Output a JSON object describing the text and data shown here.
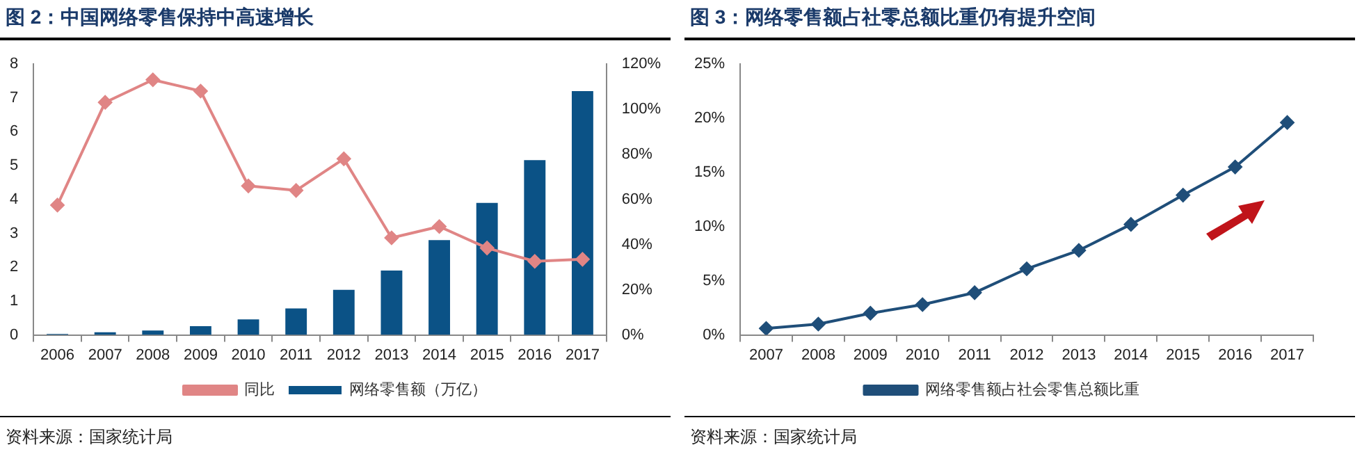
{
  "chart_data": [
    {
      "type": "bar",
      "title": "图 2：中国网络零售保持中高速增长",
      "categories": [
        "2006",
        "2007",
        "2008",
        "2009",
        "2010",
        "2011",
        "2012",
        "2013",
        "2014",
        "2015",
        "2016",
        "2017"
      ],
      "series": [
        {
          "name": "网络零售额（万亿）",
          "type": "bar",
          "color": "#0b5286",
          "values": [
            0.03,
            0.08,
            0.13,
            0.26,
            0.46,
            0.78,
            1.33,
            1.9,
            2.8,
            3.9,
            5.16,
            7.2
          ]
        },
        {
          "name": "同比",
          "type": "line",
          "axis": "y2",
          "color": "#e08585",
          "marker": "diamond",
          "values": [
            57.5,
            103,
            113,
            108,
            66,
            64,
            78,
            43,
            48,
            38.5,
            32.6,
            33.5
          ]
        }
      ],
      "ylim": [
        0,
        8
      ],
      "yticks": [
        0,
        1,
        2,
        3,
        4,
        5,
        6,
        7,
        8
      ],
      "y2lim": [
        0,
        120
      ],
      "y2ticks": [
        {
          "value": 0,
          "label": "0%"
        },
        {
          "value": 20,
          "label": "20%"
        },
        {
          "value": 40,
          "label": "40%"
        },
        {
          "value": 60,
          "label": "60%"
        },
        {
          "value": 80,
          "label": "80%"
        },
        {
          "value": 100,
          "label": "100%"
        },
        {
          "value": 120,
          "label": "120%"
        }
      ],
      "grid": false,
      "legend": "bottom",
      "annotations": [
        "资料来源：国家统计局"
      ]
    },
    {
      "type": "line",
      "title": "图 3：网络零售额占社零总额比重仍有提升空间",
      "categories": [
        "2007",
        "2008",
        "2009",
        "2010",
        "2011",
        "2012",
        "2013",
        "2014",
        "2015",
        "2016",
        "2017"
      ],
      "series": [
        {
          "name": "网络零售额占社会零售总额比重",
          "color": "#1f4e79",
          "values": [
            0.6,
            1.0,
            2.0,
            2.8,
            3.9,
            6.1,
            7.8,
            10.2,
            12.9,
            15.5,
            19.6
          ]
        }
      ],
      "marker": "diamond",
      "ylim": [
        0,
        25
      ],
      "yticks": [
        {
          "value": 0,
          "label": "0%"
        },
        {
          "value": 5,
          "label": "5%"
        },
        {
          "value": 10,
          "label": "10%"
        },
        {
          "value": 15,
          "label": "15%"
        },
        {
          "value": 20,
          "label": "20%"
        },
        {
          "value": 25,
          "label": "25%"
        }
      ],
      "grid": false,
      "legend": "bottom",
      "annotations": [
        "资料来源：国家统计局"
      ]
    }
  ]
}
